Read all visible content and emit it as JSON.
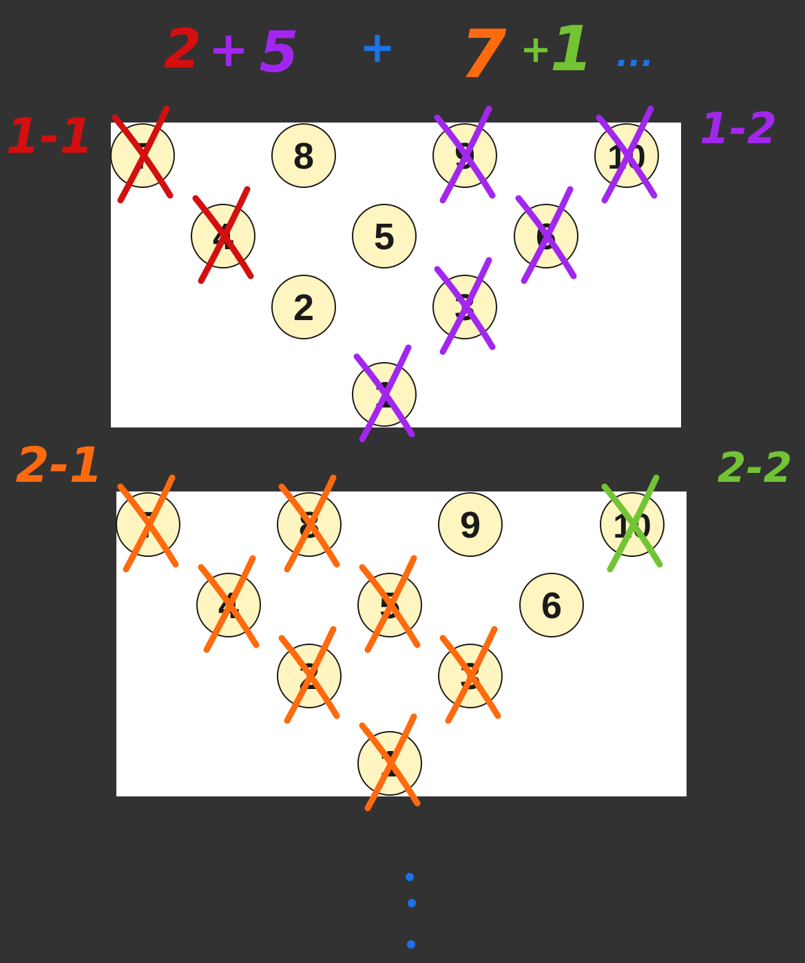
{
  "colors": {
    "background": "#323232",
    "panel": "#ffffff",
    "pin_fill": "#fff5c0",
    "pin_stroke": "#1a1a1a",
    "pin_text": "#1a1a1a",
    "red": "#d40f0f",
    "purple": "#a227ee",
    "blue": "#1a74e8",
    "orange": "#ff6a0e",
    "green": "#72c435"
  },
  "header": {
    "frame1_score": {
      "first_roll": "2",
      "plus": "+",
      "second_roll": "5"
    },
    "between": "+",
    "frame2_score": {
      "first_roll": "7",
      "plus": "+",
      "second_roll": "1"
    },
    "continuation": "..."
  },
  "frames": [
    {
      "id": "frame-1",
      "roll_labels": {
        "first": "1-1",
        "second": "1-2"
      },
      "pins": [
        {
          "number": "7",
          "knocked_by": "first"
        },
        {
          "number": "8",
          "knocked_by": ""
        },
        {
          "number": "9",
          "knocked_by": "second"
        },
        {
          "number": "10",
          "knocked_by": "second"
        },
        {
          "number": "4",
          "knocked_by": "first"
        },
        {
          "number": "5",
          "knocked_by": ""
        },
        {
          "number": "6",
          "knocked_by": "second"
        },
        {
          "number": "2",
          "knocked_by": ""
        },
        {
          "number": "3",
          "knocked_by": "second"
        },
        {
          "number": "1",
          "knocked_by": "second"
        }
      ]
    },
    {
      "id": "frame-2",
      "roll_labels": {
        "first": "2-1",
        "second": "2-2"
      },
      "pins": [
        {
          "number": "7",
          "knocked_by": "first"
        },
        {
          "number": "8",
          "knocked_by": "first"
        },
        {
          "number": "9",
          "knocked_by": ""
        },
        {
          "number": "10",
          "knocked_by": "second"
        },
        {
          "number": "4",
          "knocked_by": "first"
        },
        {
          "number": "5",
          "knocked_by": "first"
        },
        {
          "number": "6",
          "knocked_by": ""
        },
        {
          "number": "2",
          "knocked_by": "first"
        },
        {
          "number": "3",
          "knocked_by": "first"
        },
        {
          "number": "1",
          "knocked_by": "first"
        }
      ]
    }
  ],
  "footer": {
    "continuation": "⋮"
  }
}
